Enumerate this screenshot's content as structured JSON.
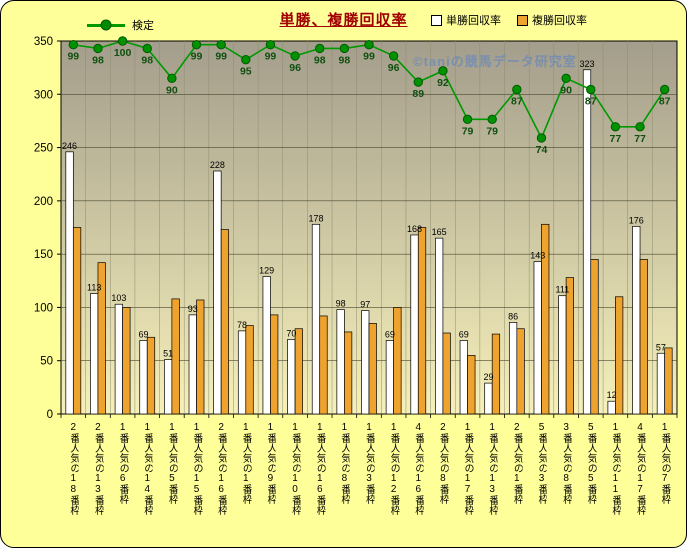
{
  "chart_data": {
    "type": "bar",
    "title": "単勝、複勝回収率",
    "watermark": "©taniの競馬データ研究室",
    "ylim": [
      0,
      350
    ],
    "yticks": [
      0,
      50,
      100,
      150,
      200,
      250,
      300,
      350
    ],
    "grid": true,
    "legend_position": "top",
    "line_scale": 3.5,
    "categories": [
      "2番人気の18番枠",
      "2番人気の13番枠",
      "1番人気の6番枠",
      "1番人気の14番枠",
      "1番人気の5番枠",
      "1番人気の15番枠",
      "2番人気の16番枠",
      "1番人気の1番枠",
      "1番人気の9番枠",
      "1番人気の10番枠",
      "1番人気の16番枠",
      "1番人気の8番枠",
      "1番人気の3番枠",
      "1番人気の12番枠",
      "4番人気の16番枠",
      "2番人気の8番枠",
      "1番人気の17番枠",
      "1番人気の13番枠",
      "2番人気の1番枠",
      "5番人気の3番枠",
      "3番人気の8番枠",
      "5番人気の5番枠",
      "1番人気の11番枠",
      "4番人気の17番枠",
      "1番人気の7番枠"
    ],
    "series": [
      {
        "name": "単勝回収率",
        "type": "bar",
        "color": "#ffffff",
        "values": [
          246,
          113,
          103,
          69,
          51,
          93,
          228,
          78,
          129,
          70,
          178,
          98,
          97,
          69,
          168,
          165,
          69,
          29,
          86,
          143,
          111,
          323,
          12,
          176,
          57
        ]
      },
      {
        "name": "複勝回収率",
        "type": "bar",
        "color": "#efa32f",
        "values": [
          175,
          142,
          100,
          72,
          108,
          107,
          173,
          83,
          93,
          80,
          92,
          77,
          85,
          100,
          175,
          76,
          55,
          75,
          80,
          178,
          128,
          145,
          110,
          145,
          62
        ]
      },
      {
        "name": "検定",
        "type": "line",
        "color": "#009900",
        "values": [
          99,
          98,
          100,
          98,
          90,
          99,
          99,
          95,
          99,
          96,
          98,
          98,
          99,
          96,
          89,
          92,
          79,
          79,
          87,
          74,
          90,
          87,
          77,
          77,
          87
        ]
      }
    ],
    "colors": {
      "frame_bg": "#ffff99",
      "plot_bg_top": "#a39d8c",
      "plot_bg_bottom": "#f6f0ba",
      "title": "#a00000",
      "line_label": "#0f4f0f",
      "bar_label": "#000000"
    }
  }
}
